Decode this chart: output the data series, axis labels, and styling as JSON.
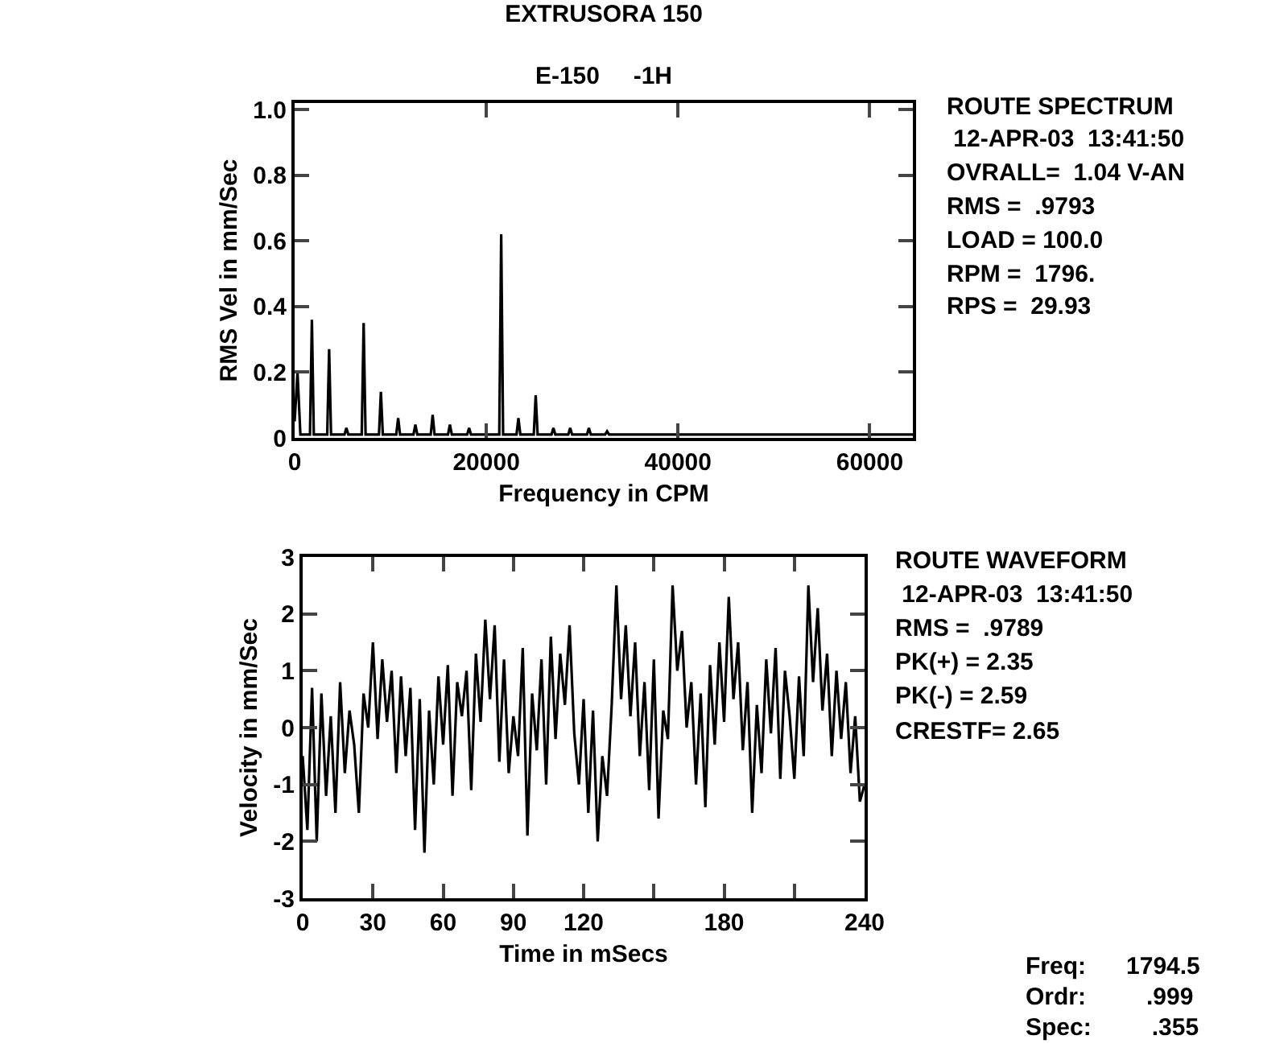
{
  "chart_data": [
    {
      "type": "line",
      "title": "EXTRUSORA 150",
      "subtitle": "E-150     -1H",
      "xlabel": "Frequency in CPM",
      "ylabel": "RMS Vel in mm/Sec",
      "xlim": [
        0,
        64500
      ],
      "xticks": [
        0,
        20000,
        40000,
        60000
      ],
      "ylim": [
        0,
        1.02
      ],
      "yticks": [
        0,
        {
          "value": 0.2,
          "label": "0.2"
        },
        {
          "value": 0.4,
          "label": "0.4"
        },
        {
          "value": 0.6,
          "label": "0.6"
        },
        {
          "value": 0.8,
          "label": "0.8"
        },
        {
          "value": 1,
          "label": "1.0"
        }
      ],
      "marker": "none",
      "line_style": "solid",
      "series": [
        {
          "color": "#000000",
          "x": [
            0,
            300,
            600,
            1600,
            1800,
            2000,
            3400,
            3600,
            3800,
            5200,
            5400,
            5600,
            7000,
            7200,
            7400,
            8800,
            9000,
            9200,
            10600,
            10800,
            11000,
            12400,
            12600,
            12800,
            14200,
            14400,
            14600,
            16000,
            16200,
            16400,
            18000,
            18200,
            18400,
            21350,
            21550,
            21750,
            23150,
            23350,
            23550,
            24950,
            25150,
            25350,
            26800,
            27000,
            27200,
            28550,
            28750,
            28950,
            30500,
            30700,
            30900,
            32400,
            32600,
            32800,
            36000,
            40000,
            45000,
            50000,
            55000,
            60000,
            64500
          ],
          "values": [
            0.05,
            0.2,
            0.01,
            0.01,
            0.36,
            0.01,
            0.01,
            0.27,
            0.01,
            0.01,
            0.03,
            0.01,
            0.01,
            0.35,
            0.01,
            0.01,
            0.14,
            0.01,
            0.01,
            0.06,
            0.01,
            0.01,
            0.04,
            0.01,
            0.01,
            0.07,
            0.01,
            0.01,
            0.04,
            0.01,
            0.01,
            0.03,
            0.01,
            0.01,
            0.62,
            0.01,
            0.01,
            0.06,
            0.01,
            0.01,
            0.13,
            0.01,
            0.01,
            0.03,
            0.01,
            0.01,
            0.03,
            0.01,
            0.01,
            0.03,
            0.01,
            0.01,
            0.02,
            0.01,
            0.01,
            0.01,
            0.01,
            0.01,
            0.01,
            0.01,
            0.01
          ]
        }
      ],
      "annotations": [
        "ROUTE SPECTRUM",
        " 12-APR-03  13:41:50",
        "OVRALL=  1.04 V-AN",
        "RMS =  .9793",
        "LOAD = 100.0",
        "RPM =  1796.",
        "RPS =  29.93"
      ]
    },
    {
      "type": "line",
      "xlabel": "Time in mSecs",
      "ylabel": "Velocity in mm/Sec",
      "xlim": [
        0,
        240
      ],
      "xticks": [
        0,
        30,
        60,
        90,
        120,
        {
          "value": 150,
          "label": null
        },
        180,
        {
          "value": 210,
          "label": null
        },
        240
      ],
      "ylim": [
        -3,
        3
      ],
      "yticks": [
        -3,
        -2,
        -1,
        0,
        1,
        2,
        3
      ],
      "marker": "none",
      "line_style": "solid",
      "series": [
        {
          "color": "#000000",
          "x": [
            0,
            2,
            4,
            6,
            8,
            10,
            12,
            14,
            16,
            18,
            20,
            22,
            24,
            26,
            28,
            30,
            32,
            34,
            36,
            38,
            40,
            42,
            44,
            46,
            48,
            50,
            52,
            54,
            56,
            58,
            60,
            62,
            64,
            66,
            68,
            70,
            72,
            74,
            76,
            78,
            80,
            82,
            84,
            86,
            88,
            90,
            92,
            94,
            96,
            98,
            100,
            102,
            104,
            106,
            108,
            110,
            112,
            114,
            116,
            118,
            120,
            122,
            124,
            126,
            128,
            130,
            132,
            134,
            136,
            138,
            140,
            142,
            144,
            146,
            148,
            150,
            152,
            154,
            156,
            158,
            160,
            162,
            164,
            166,
            168,
            170,
            172,
            174,
            176,
            178,
            180,
            182,
            184,
            186,
            188,
            190,
            192,
            194,
            196,
            198,
            200,
            202,
            204,
            206,
            208,
            210,
            212,
            214,
            216,
            218,
            220,
            222,
            224,
            226,
            228,
            230,
            232,
            234,
            236,
            238,
            240
          ],
          "values": [
            -0.5,
            -1.8,
            0.7,
            -2.0,
            0.6,
            -1.2,
            0.2,
            -1.5,
            0.8,
            -0.8,
            0.3,
            -0.3,
            -1.5,
            0.6,
            0.0,
            1.5,
            -0.2,
            1.2,
            0.1,
            1.0,
            -0.8,
            0.9,
            -0.5,
            0.7,
            -1.8,
            0.5,
            -2.2,
            0.3,
            -1.0,
            0.9,
            -0.3,
            1.1,
            -1.2,
            0.8,
            0.2,
            1.0,
            -1.1,
            1.3,
            0.1,
            1.9,
            0.5,
            1.8,
            -0.6,
            1.2,
            -0.8,
            0.2,
            -0.5,
            1.4,
            -1.9,
            0.6,
            -0.4,
            1.2,
            -1.0,
            1.6,
            -0.2,
            1.3,
            0.4,
            1.8,
            -0.1,
            -1.0,
            0.5,
            -1.5,
            0.3,
            -2.0,
            -0.5,
            -1.2,
            0.4,
            2.5,
            0.5,
            1.8,
            0.2,
            1.5,
            -0.5,
            0.8,
            -1.1,
            1.2,
            -1.6,
            0.3,
            -0.2,
            2.5,
            1.0,
            1.7,
            0.0,
            0.8,
            -1.0,
            0.6,
            -1.4,
            1.1,
            -0.3,
            1.5,
            0.1,
            2.3,
            0.5,
            1.5,
            -0.4,
            0.8,
            -1.5,
            0.4,
            -0.8,
            1.2,
            -0.1,
            1.4,
            -0.9,
            1.0,
            0.2,
            -0.9,
            0.9,
            -0.5,
            2.5,
            0.8,
            2.1,
            0.3,
            1.3,
            -0.5,
            1.0,
            -0.2,
            0.8,
            -0.8,
            0.2,
            -1.3,
            -1.0
          ]
        }
      ],
      "annotations": [
        "ROUTE WAVEFORM",
        " 12-APR-03  13:41:50",
        "RMS =  .9789",
        "PK(+) = 2.35",
        "PK(-) = 2.59",
        "CRESTF= 2.65",
        "Freq:      1794.5",
        "Ordr:         .999",
        "Spec:         .355"
      ]
    }
  ]
}
